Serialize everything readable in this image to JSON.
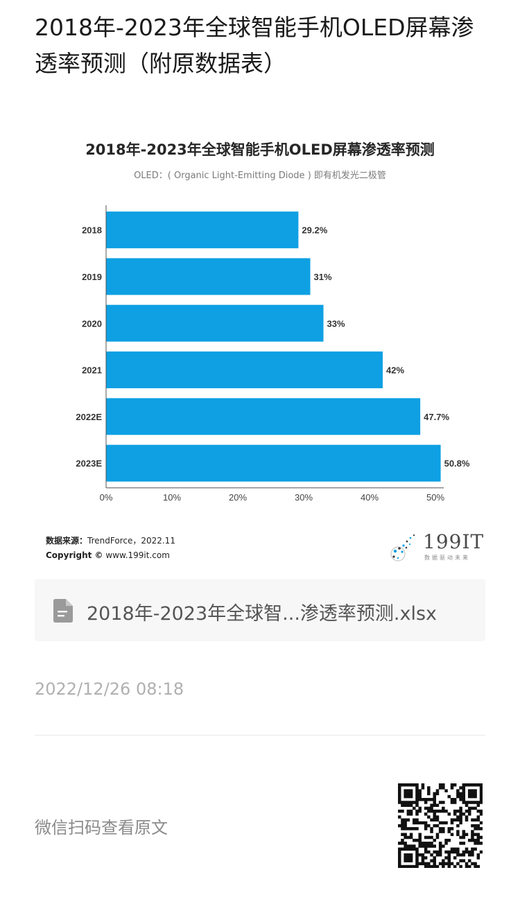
{
  "page": {
    "title": "2018年-2023年全球智能手机OLED屏幕渗透率预测（附原数据表）",
    "attachment_name": "2018年-2023年全球智...渗透率预测.xlsx",
    "timestamp": "2022/12/26 08:18",
    "qr_hint": "微信扫码查看原文",
    "file_icon": "document-icon",
    "qr_icon": "qr-code-icon"
  },
  "figure": {
    "source_label": "数据来源：",
    "source_value": "TrendForce，2022.11",
    "copyright_label": "Copyright ©",
    "copyright_value": "www.199it.com",
    "logo_text": "199IT",
    "logo_tagline": "数据驱动未来"
  },
  "chart_data": {
    "type": "bar",
    "orientation": "horizontal",
    "title": "2018年-2023年全球智能手机OLED屏幕渗透率预测",
    "subtitle": "OLED：( Organic Light-Emitting Diode ) 即有机发光二极管",
    "categories": [
      "2018",
      "2019",
      "2020",
      "2021",
      "2022E",
      "2023E"
    ],
    "values": [
      29.2,
      31,
      33,
      42,
      47.7,
      50.8
    ],
    "data_labels": [
      "29.2%",
      "31%",
      "33%",
      "42%",
      "47.7%",
      "50.8%"
    ],
    "x_ticks": [
      "0%",
      "10%",
      "20%",
      "30%",
      "40%",
      "50%"
    ],
    "xlim": [
      0,
      50
    ],
    "bar_color": "#0ea0e3",
    "grid": false
  }
}
